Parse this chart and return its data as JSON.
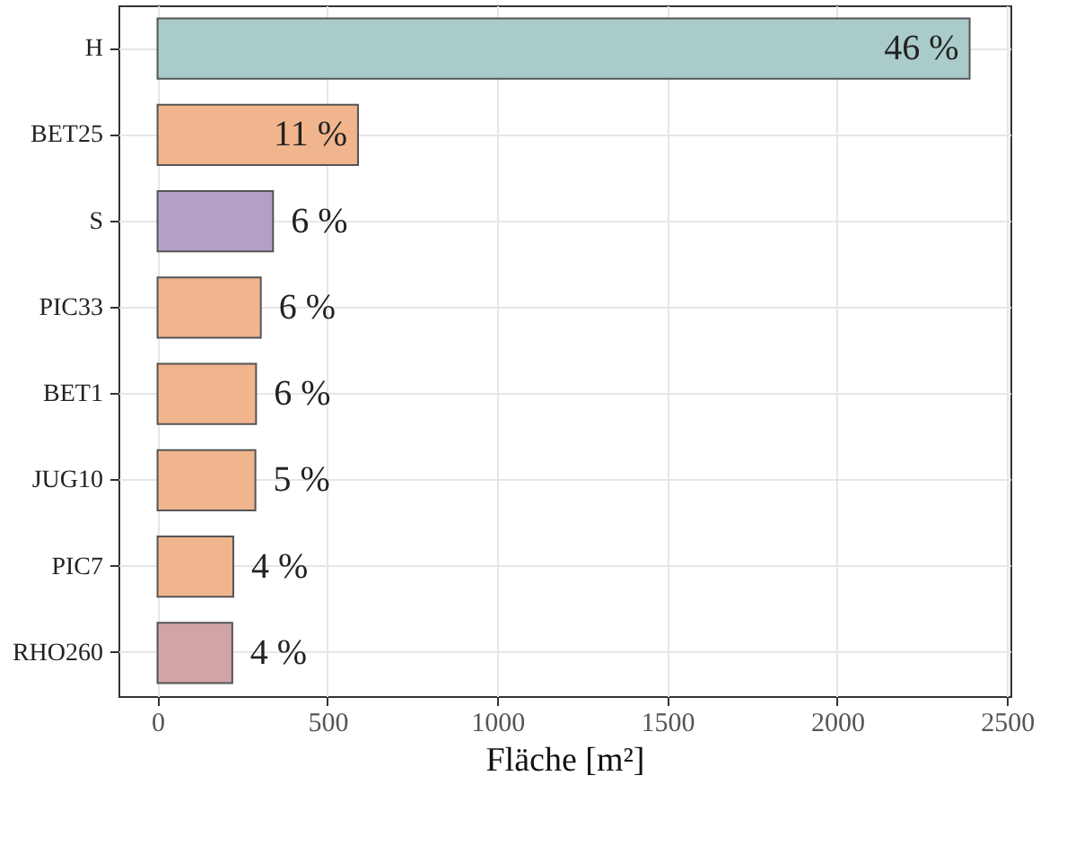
{
  "chart_data": {
    "type": "bar",
    "orientation": "horizontal",
    "xlabel": "Fläche [m²]",
    "categories": [
      "H",
      "BET25",
      "S",
      "PIC33",
      "BET1",
      "JUG10",
      "PIC7",
      "RHO260"
    ],
    "values": [
      2390,
      590,
      340,
      304,
      290,
      288,
      223,
      220
    ],
    "colors": [
      "#a9cbc9",
      "#f0b58d",
      "#b2a0c6",
      "#f0b58d",
      "#f0b58d",
      "#f0b58d",
      "#f0b58d",
      "#d1a4a6"
    ],
    "annotations": [
      {
        "text": "46 %",
        "x": 2390,
        "y": "H"
      },
      {
        "text": "11 %",
        "x": 590,
        "y": "BET25"
      },
      {
        "text": "6 %",
        "x": 340,
        "y": "S"
      },
      {
        "text": "6 %",
        "x": 304,
        "y": "PIC33"
      },
      {
        "text": "6 %",
        "x": 290,
        "y": "BET1"
      },
      {
        "text": "5 %",
        "x": 288,
        "y": "JUG10"
      },
      {
        "text": "4 %",
        "x": 223,
        "y": "PIC7"
      },
      {
        "text": "4 %",
        "x": 220,
        "y": "RHO260"
      }
    ],
    "xlim": [
      -115,
      2510
    ],
    "xticks": [
      0,
      500,
      1000,
      1500,
      2000,
      2500
    ],
    "grid": true
  }
}
